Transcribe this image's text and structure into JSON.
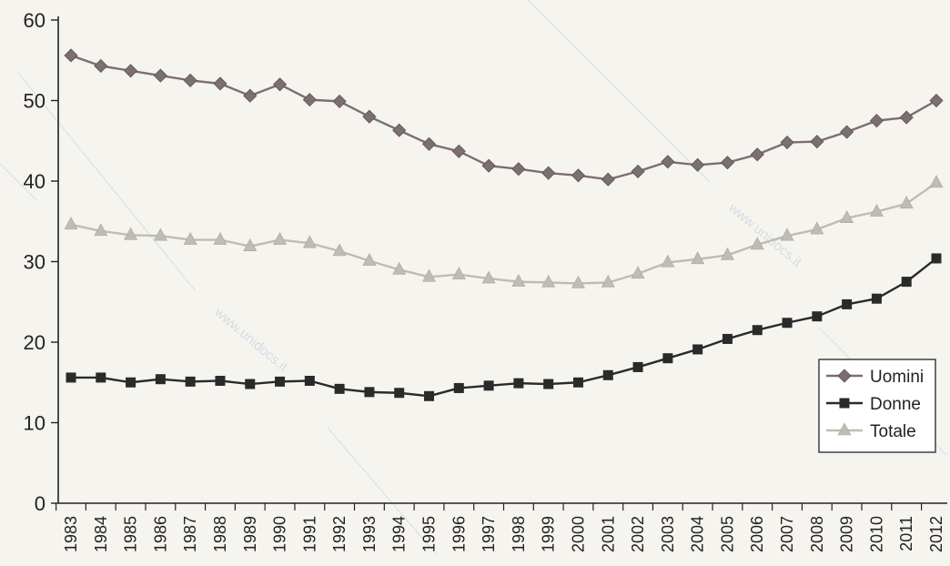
{
  "watermark_text": "www.unidocs.it",
  "chart_data": {
    "type": "line",
    "x": [
      1983,
      1984,
      1985,
      1986,
      1987,
      1988,
      1989,
      1990,
      1991,
      1992,
      1993,
      1994,
      1995,
      1996,
      1997,
      1998,
      1999,
      2000,
      2001,
      2002,
      2003,
      2004,
      2005,
      2006,
      2007,
      2008,
      2009,
      2010,
      2011,
      2012
    ],
    "x_tick_labels": [
      "1983",
      "1984",
      "1985",
      "1986",
      "1987",
      "1988",
      "1989",
      "1990",
      "1991",
      "1992",
      "1993",
      "1994",
      "1995",
      "1996",
      "1997",
      "1998",
      "1999",
      "2000",
      "2001",
      "2002",
      "2003",
      "2004",
      "2005",
      "2006",
      "2007",
      "2008",
      "2009",
      "2010",
      "2011",
      "2012"
    ],
    "ylim": [
      0,
      60
    ],
    "y_ticks": [
      0,
      10,
      20,
      30,
      40,
      50,
      60
    ],
    "y_tick_labels": [
      "0",
      "10",
      "20",
      "30",
      "40",
      "50",
      "60"
    ],
    "grid": false,
    "legend_position": "bottom-right",
    "title": "",
    "xlabel": "",
    "ylabel": "",
    "series": [
      {
        "name": "Uomini",
        "marker": "diamond",
        "color": "#7b6f72",
        "values": [
          55.6,
          54.3,
          53.7,
          53.1,
          52.5,
          52.1,
          50.6,
          52.0,
          50.1,
          49.9,
          48.0,
          46.3,
          44.6,
          43.7,
          41.9,
          41.5,
          41.0,
          40.7,
          40.2,
          41.2,
          42.4,
          42.0,
          42.3,
          43.3,
          44.8,
          44.9,
          46.1,
          47.5,
          47.9,
          50.0
        ]
      },
      {
        "name": "Donne",
        "marker": "square",
        "color": "#2a2a2a",
        "values": [
          15.6,
          15.6,
          15.0,
          15.4,
          15.1,
          15.2,
          14.8,
          15.1,
          15.2,
          14.2,
          13.8,
          13.7,
          13.3,
          14.3,
          14.6,
          14.9,
          14.8,
          15.0,
          15.9,
          16.9,
          18.0,
          19.1,
          20.4,
          21.5,
          22.4,
          23.2,
          24.7,
          25.4,
          27.5,
          30.4
        ]
      },
      {
        "name": "Totale",
        "marker": "triangle",
        "color": "#bdbdb3",
        "values": [
          34.6,
          33.8,
          33.3,
          33.2,
          32.7,
          32.7,
          31.9,
          32.7,
          32.3,
          31.3,
          30.1,
          29.0,
          28.1,
          28.4,
          27.9,
          27.5,
          27.4,
          27.3,
          27.4,
          28.5,
          29.9,
          30.3,
          30.8,
          32.1,
          33.2,
          34.0,
          35.4,
          36.2,
          37.2,
          39.8
        ]
      }
    ]
  }
}
